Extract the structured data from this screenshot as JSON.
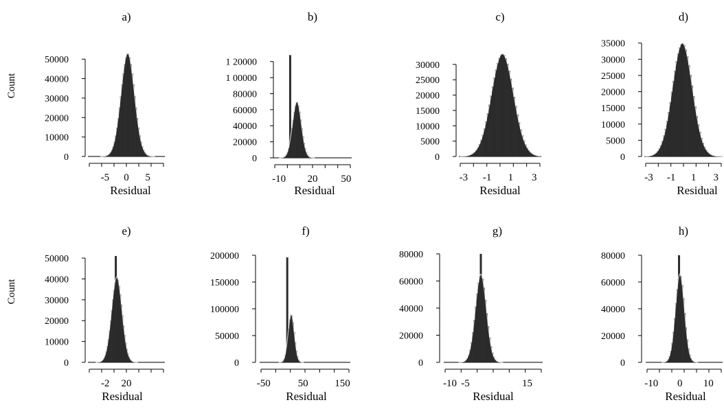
{
  "figure": {
    "ylabel_rows": [
      "Count",
      "Count"
    ]
  },
  "chart_data": [
    {
      "type": "bar",
      "panel_title": "a)",
      "xlabel": "Residual",
      "ylabel": "Count",
      "xlim": [
        -9,
        9
      ],
      "ylim": [
        0,
        55000
      ],
      "xticks": [
        -5,
        0,
        5
      ],
      "xticklabels": [
        "-5",
        "0",
        "5"
      ],
      "yticks": [
        0,
        10000,
        20000,
        30000,
        40000,
        50000
      ],
      "yticklabels": [
        "0",
        "10000",
        "20000",
        "30000",
        "40000",
        "50000"
      ],
      "distribution": {
        "mean": 0.3,
        "sd": 1.6,
        "peak": 53000
      },
      "bins": 60
    },
    {
      "type": "bar",
      "panel_title": "b)",
      "xlabel": "Residual",
      "ylabel": "Count",
      "xlim": [
        -15,
        55
      ],
      "ylim": [
        0,
        130000
      ],
      "xticks": [
        -10,
        20,
        50
      ],
      "xticklabels": [
        "-10",
        "20",
        "50"
      ],
      "yticks": [
        0,
        20000,
        40000,
        60000,
        80000,
        100000,
        120000
      ],
      "yticklabels": [
        "0",
        "20000",
        "40000",
        "60000",
        "80000",
        "1 00000",
        "1 20000"
      ],
      "distribution": {
        "mean": 6,
        "sd": 4,
        "peak": 70000
      },
      "spike": {
        "x": 0,
        "value": 128000
      },
      "bins": 70
    },
    {
      "type": "bar",
      "panel_title": "c)",
      "xlabel": "Residual",
      "ylabel": "Count",
      "xlim": [
        -3.4,
        3.6
      ],
      "ylim": [
        0,
        34000
      ],
      "xticks": [
        -3,
        -1,
        1,
        3
      ],
      "xticklabels": [
        "-3",
        "-1",
        "1",
        "3"
      ],
      "yticks": [
        0,
        5000,
        10000,
        15000,
        20000,
        25000,
        30000
      ],
      "yticklabels": [
        "0",
        "5000",
        "10000",
        "15000",
        "20000",
        "25000",
        "30000"
      ],
      "distribution": {
        "mean": 0.3,
        "sd": 0.95,
        "peak": 33500
      },
      "bins": 50
    },
    {
      "type": "bar",
      "panel_title": "d)",
      "xlabel": "Residual",
      "ylabel": "Count",
      "xlim": [
        -3.4,
        3.6
      ],
      "ylim": [
        0,
        36000
      ],
      "xticks": [
        -3,
        -1,
        1,
        3
      ],
      "xticklabels": [
        "-3",
        "-1",
        "1",
        "3"
      ],
      "yticks": [
        0,
        5000,
        10000,
        15000,
        20000,
        25000,
        30000,
        35000
      ],
      "yticklabels": [
        "0",
        "5000",
        "10000",
        "15000",
        "20000",
        "25000",
        "30000",
        "35000"
      ],
      "distribution": {
        "mean": 0.0,
        "sd": 0.9,
        "peak": 35000
      },
      "bins": 50
    },
    {
      "type": "bar",
      "panel_title": "e)",
      "xlabel": "Residual",
      "ylabel": "Count",
      "xlim": [
        -20,
        60
      ],
      "ylim": [
        0,
        52000
      ],
      "xticks": [
        -2,
        20
      ],
      "xticklabels": [
        "-2",
        "20"
      ],
      "yticks": [
        0,
        10000,
        20000,
        30000,
        40000,
        50000
      ],
      "yticklabels": [
        "0",
        "10000",
        "20000",
        "30000",
        "40000",
        "50000"
      ],
      "distribution": {
        "mean": 10,
        "sd": 5.5,
        "peak": 41000
      },
      "spike": {
        "x": 9,
        "value": 51000
      },
      "bins": 70
    },
    {
      "type": "bar",
      "panel_title": "f)",
      "xlabel": "Residual",
      "ylabel": "Count",
      "xlim": [
        -60,
        170
      ],
      "ylim": [
        0,
        200000
      ],
      "xticks": [
        -50,
        50,
        150
      ],
      "xticklabels": [
        "-50",
        "50",
        "150"
      ],
      "yticks": [
        0,
        50000,
        100000,
        150000,
        200000
      ],
      "yticklabels": [
        "0",
        "50000",
        "100000",
        "150000",
        "200000"
      ],
      "distribution": {
        "mean": 20,
        "sd": 8,
        "peak": 90000
      },
      "spike": {
        "x": 10,
        "value": 196000
      },
      "bins": 80
    },
    {
      "type": "bar",
      "panel_title": "g)",
      "xlabel": "Residual",
      "ylabel": "Count",
      "xlim": [
        -12,
        20
      ],
      "ylim": [
        0,
        82000
      ],
      "xticks": [
        -10,
        -5,
        15
      ],
      "xticklabels": [
        "-10",
        "-5",
        "15"
      ],
      "yticks": [
        0,
        20000,
        40000,
        60000,
        80000
      ],
      "yticklabels": [
        "0",
        "20000",
        "40000",
        "60000",
        "80000"
      ],
      "distribution": {
        "mean": 0,
        "sd": 1.8,
        "peak": 65000
      },
      "spike": {
        "x": 0,
        "value": 80000
      },
      "bins": 70
    },
    {
      "type": "bar",
      "panel_title": "h)",
      "xlabel": "Residual",
      "ylabel": "Count",
      "xlim": [
        -12,
        15
      ],
      "ylim": [
        0,
        82000
      ],
      "xticks": [
        -10,
        0,
        10
      ],
      "xticklabels": [
        "-10",
        "0",
        "10"
      ],
      "yticks": [
        0,
        20000,
        40000,
        60000,
        80000
      ],
      "yticklabels": [
        "0",
        "20000",
        "40000",
        "60000",
        "80000"
      ],
      "distribution": {
        "mean": 0,
        "sd": 1.6,
        "peak": 66000
      },
      "spike": {
        "x": -0.3,
        "value": 80000
      },
      "bins": 60
    }
  ]
}
